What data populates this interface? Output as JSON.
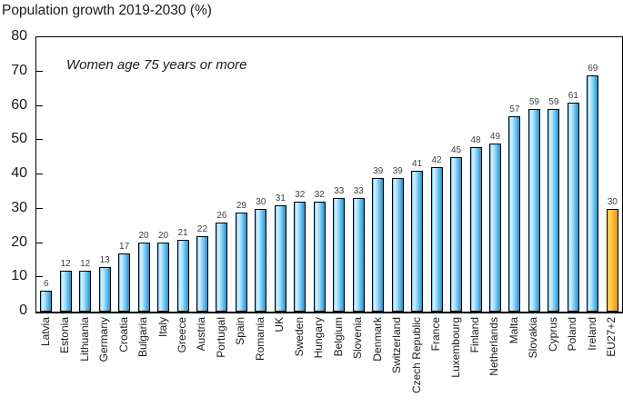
{
  "title": "Population growth 2019-2030 (%)",
  "annotation": "Women age 75 years or more",
  "colors": {
    "bar_blue_edge": "#56b7ea",
    "bar_blue_light": "#dff2fc",
    "bar_blue_dark": "#1695da",
    "bar_orange_edge": "#f8ad33",
    "bar_orange_light": "#fed863",
    "bar_orange_dark": "#f29407",
    "outline": "#000000",
    "value_label": "#3f3f3f",
    "text": "#1a1a1a"
  },
  "chart_data": {
    "type": "bar",
    "title": "Population growth 2019-2030 (%)",
    "annotation": "Women age 75 years or more",
    "categories": [
      "Latvia",
      "Estonia",
      "Lithuania",
      "Germany",
      "Croatia",
      "Bulgaria",
      "Italy",
      "Greece",
      "Austria",
      "Portugal",
      "Spain",
      "Romania",
      "UK",
      "Sweden",
      "Hungary",
      "Belgium",
      "Slovenia",
      "Denmark",
      "Switzerland",
      "Czech Republic",
      "France",
      "Luxembourg",
      "Finland",
      "Netherlands",
      "Malta",
      "Slovakia",
      "Cyprus",
      "Poland",
      "Ireland",
      "EU27+2"
    ],
    "values": [
      6,
      12,
      12,
      13,
      17,
      20,
      20,
      21,
      22,
      26,
      29,
      30,
      31,
      32,
      32,
      33,
      33,
      39,
      39,
      41,
      42,
      45,
      48,
      49,
      57,
      59,
      59,
      61,
      69,
      30
    ],
    "highlight_category": "EU27+2",
    "xlabel": "",
    "ylabel": "",
    "ylim": [
      0,
      80
    ],
    "yticks": [
      0,
      10,
      20,
      30,
      40,
      50,
      60,
      70,
      80
    ],
    "grid": false,
    "data_labels": true,
    "legend": "none"
  }
}
